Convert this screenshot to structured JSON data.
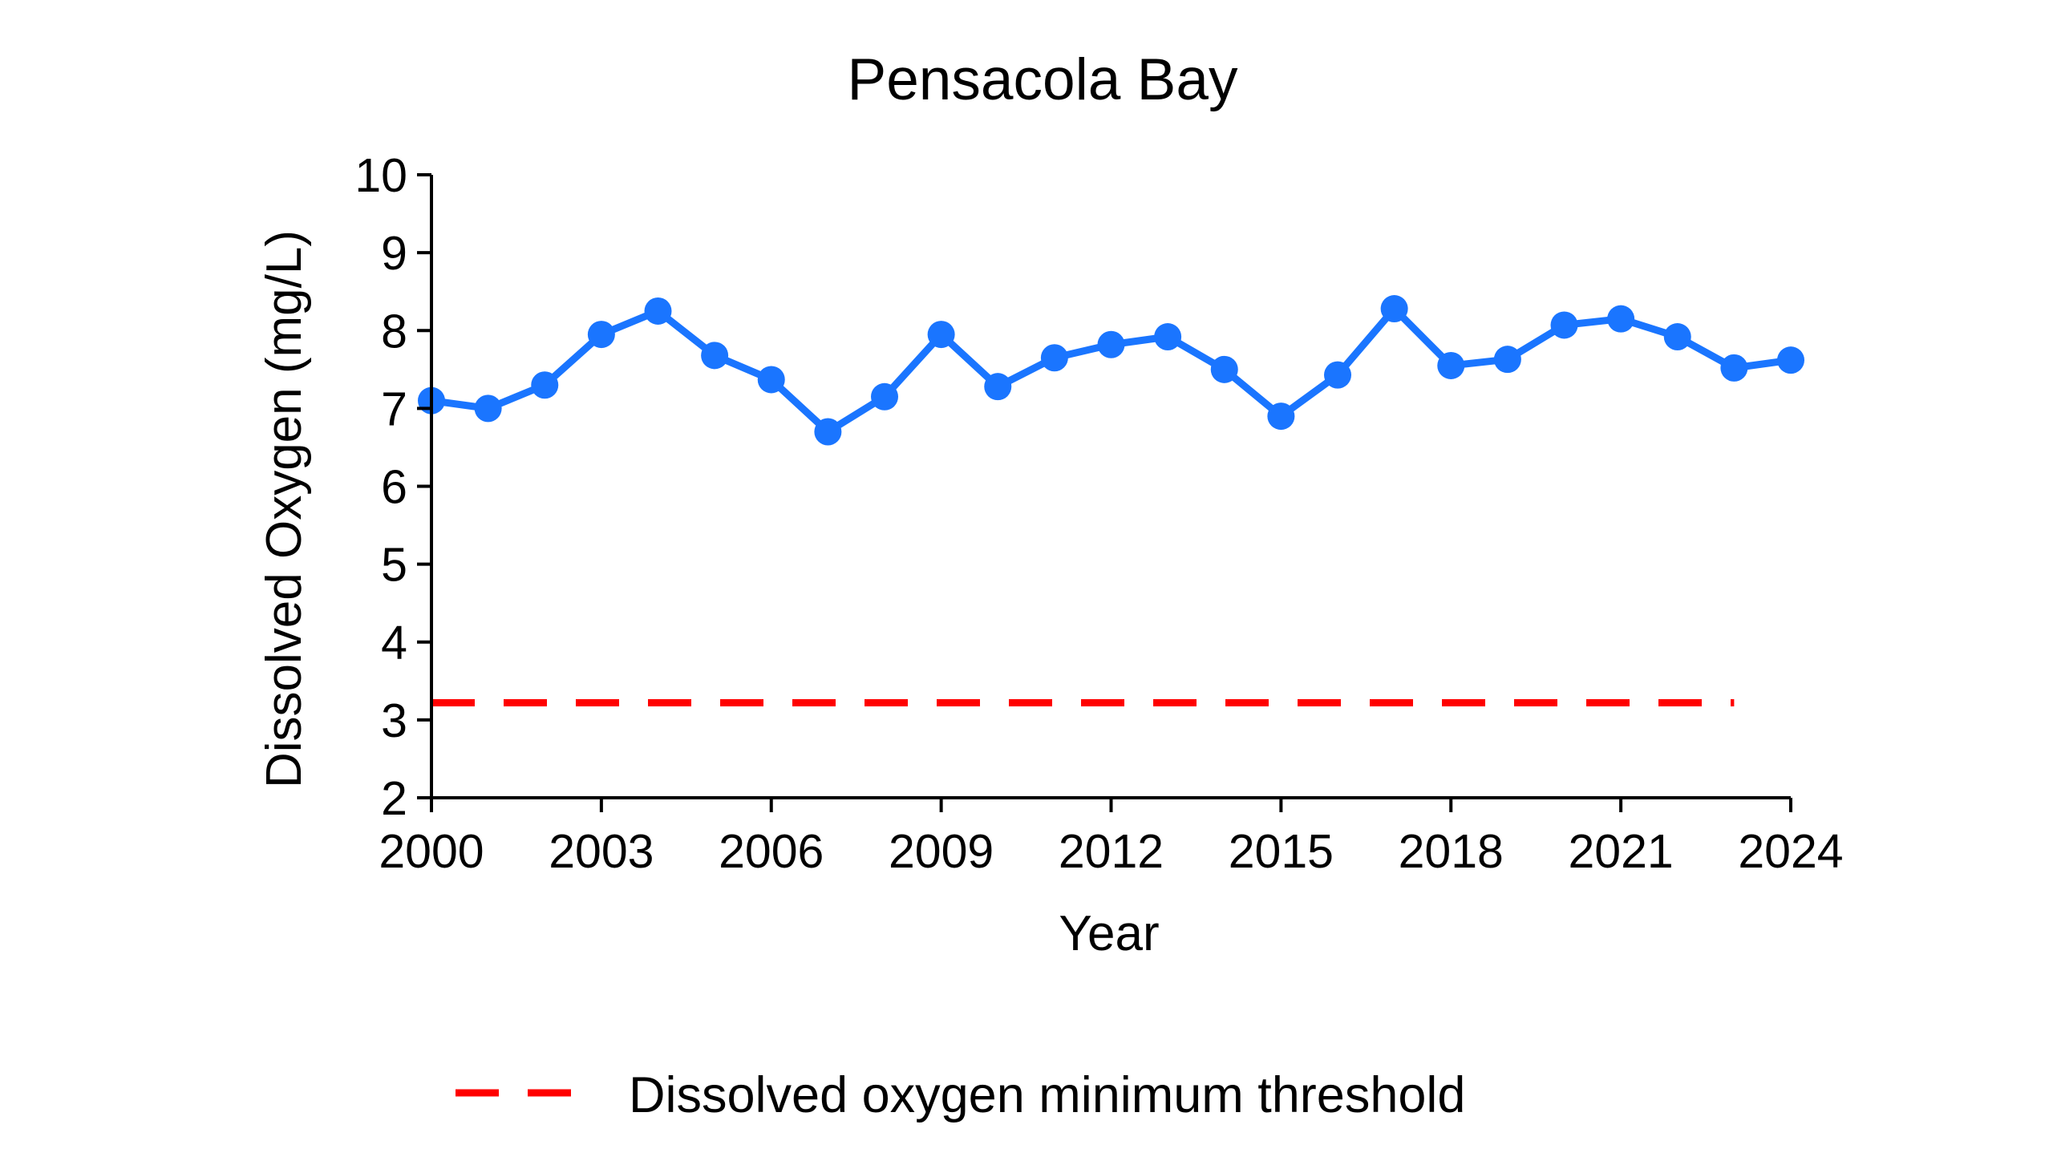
{
  "chart_data": {
    "type": "line",
    "title": "Pensacola Bay",
    "xlabel": "Year",
    "ylabel": "Dissolved Oxygen (mg/L)",
    "xlim": [
      2000,
      2024
    ],
    "ylim": [
      2,
      10
    ],
    "xticks": [
      "2000",
      "2003",
      "2006",
      "2009",
      "2012",
      "2015",
      "2018",
      "2021",
      "2024"
    ],
    "yticks": [
      "2",
      "3",
      "4",
      "5",
      "6",
      "7",
      "8",
      "9",
      "10"
    ],
    "grid": false,
    "legend_position": "bottom",
    "series": [
      {
        "color": "#1a75ff",
        "x": [
          2000,
          2001,
          2002,
          2003,
          2004,
          2005,
          2006,
          2007,
          2008,
          2009,
          2010,
          2011,
          2012,
          2013,
          2014,
          2015,
          2016,
          2017,
          2018,
          2019,
          2020,
          2021,
          2022,
          2023,
          2024
        ],
        "values": [
          7.1,
          7.0,
          7.3,
          7.95,
          8.25,
          7.68,
          7.37,
          6.7,
          7.15,
          7.95,
          7.28,
          7.65,
          7.82,
          7.92,
          7.5,
          6.9,
          7.43,
          8.28,
          7.55,
          7.63,
          8.07,
          8.15,
          7.92,
          7.52,
          7.62
        ]
      }
    ],
    "reference_lines": [
      {
        "name": "Dissolved oxygen minimum threshold",
        "value": 3.22,
        "x_range": [
          2000,
          2023
        ],
        "style": "dashed",
        "color": "#ff0000"
      }
    ],
    "legend": [
      {
        "label": "Dissolved oxygen minimum threshold",
        "color": "#ff0000",
        "style": "dashed"
      }
    ]
  }
}
